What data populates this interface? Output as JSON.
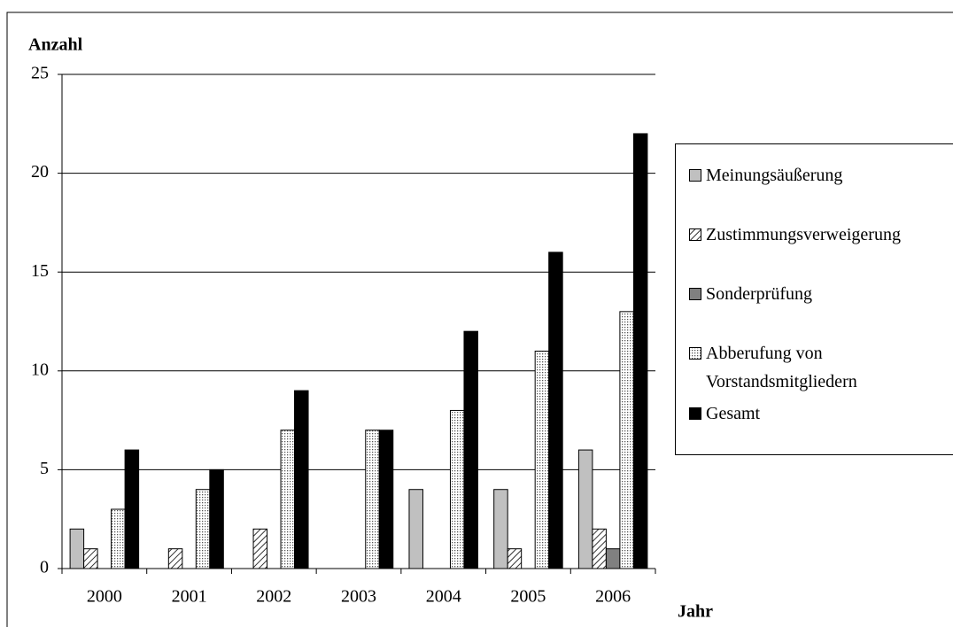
{
  "chart_data": {
    "type": "bar",
    "y_label": "Anzahl",
    "x_label": "Jahr",
    "categories": [
      "2000",
      "2001",
      "2002",
      "2003",
      "2004",
      "2005",
      "2006"
    ],
    "series": [
      {
        "name": "Meinungsäußerung",
        "color": "#c0c0c0",
        "values": [
          2,
          0,
          0,
          0,
          4,
          4,
          6
        ]
      },
      {
        "name": "Zustimmungsverweigerung",
        "color": "#ffffff",
        "pattern": "hatch",
        "values": [
          1,
          1,
          2,
          0,
          0,
          1,
          2
        ]
      },
      {
        "name": "Sonderprüfung",
        "color": "#808080",
        "values": [
          0,
          0,
          0,
          0,
          0,
          0,
          1
        ]
      },
      {
        "name": "Abberufung von Vorstandsmitgliedern",
        "color": "#ffffff",
        "pattern": "dots",
        "values": [
          3,
          4,
          7,
          7,
          8,
          11,
          13
        ]
      },
      {
        "name": "Gesamt",
        "color": "#000000",
        "values": [
          6,
          5,
          9,
          7,
          12,
          16,
          22
        ]
      }
    ],
    "ylim": [
      0,
      25
    ],
    "yticks": [
      0,
      5,
      10,
      15,
      20,
      25
    ],
    "grid": true,
    "legend": "right"
  }
}
